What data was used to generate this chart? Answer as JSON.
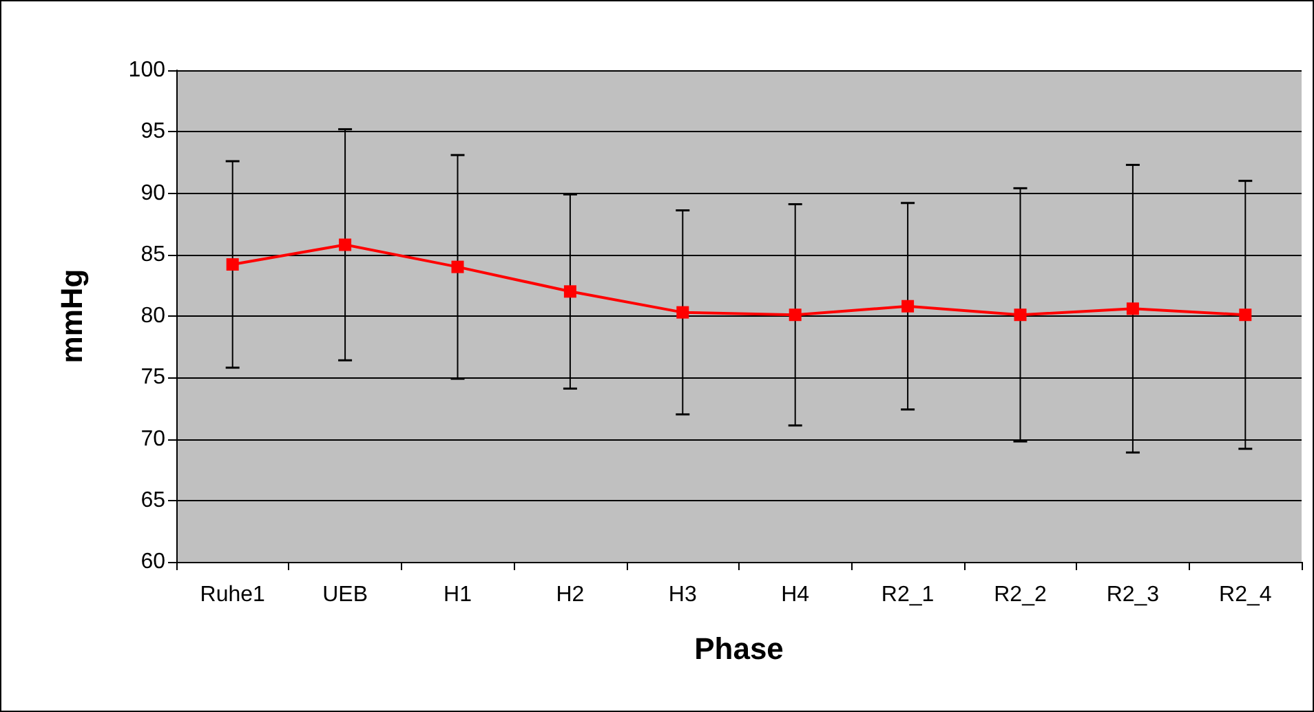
{
  "chart_data": {
    "type": "line",
    "xlabel": "Phase",
    "ylabel": "mmHg",
    "categories": [
      "Ruhe1",
      "UEB",
      "H1",
      "H2",
      "H3",
      "H4",
      "R2_1",
      "R2_2",
      "R2_3",
      "R2_4"
    ],
    "series": [
      {
        "color": "#ff0000",
        "values": [
          84.2,
          85.8,
          84.0,
          82.0,
          80.3,
          80.1,
          80.8,
          80.1,
          80.6,
          80.1
        ],
        "errors": [
          8.4,
          9.4,
          9.1,
          7.9,
          8.3,
          9.0,
          8.4,
          10.3,
          11.7,
          10.9
        ]
      }
    ],
    "ylim": [
      60,
      100
    ],
    "yticks": [
      60,
      65,
      70,
      75,
      80,
      85,
      90,
      95,
      100
    ],
    "grid": "y",
    "marker": "square",
    "line_style": "solid"
  }
}
